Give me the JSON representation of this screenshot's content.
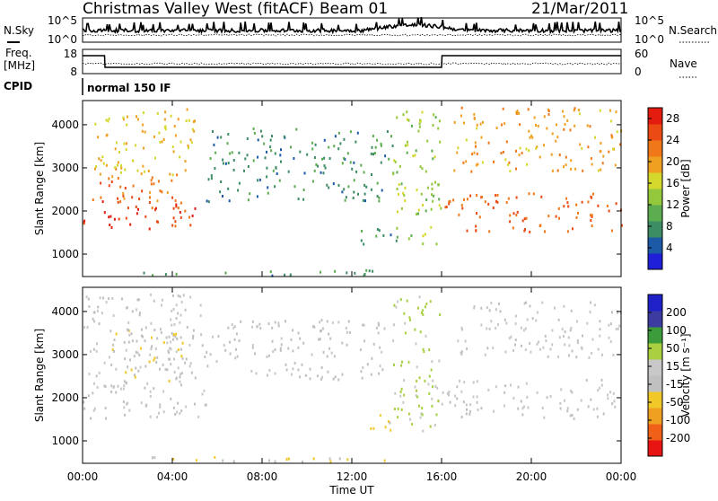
{
  "header": {
    "station": "Christmas Valley West (fitACF)",
    "beam": "Beam 01",
    "date": "21/Mar/2011"
  },
  "strip_labels": {
    "nsky": "N.Sky",
    "nsearch": "N.Search",
    "freq_line1": "Freq.",
    "freq_line2": "[MHz]",
    "nave": "Nave",
    "cpid": "CPID",
    "cpid_value": "normal 150 IF",
    "noise_ticks": [
      "10^5",
      "10^0"
    ],
    "freq_ticks": [
      "18",
      "8"
    ],
    "nave_ticks": [
      "60",
      "0"
    ]
  },
  "x_axis": {
    "label": "Time UT",
    "ticks": [
      "00:00",
      "04:00",
      "08:00",
      "12:00",
      "16:00",
      "20:00",
      "00:00"
    ]
  },
  "colors": {
    "power": [
      "#1f1fd8",
      "#1c5aa8",
      "#3c8c64",
      "#5cac50",
      "#94c83c",
      "#d4d82c",
      "#f0a020",
      "#f07818",
      "#ec4a14",
      "#e41c10"
    ],
    "velocity": [
      "#e81414",
      "#f06018",
      "#f0a020",
      "#f0c828",
      "#c0c0c0",
      "#c8c8c8",
      "#a8d040",
      "#3c9c3c",
      "#3c3ca0",
      "#2020c8"
    ]
  },
  "chart_data": [
    {
      "type": "heatmap",
      "title": "Power",
      "xlabel": "Time UT",
      "ylabel": "Slant Range [km]",
      "y_ticks": [
        "1000",
        "2000",
        "3000",
        "4000"
      ],
      "ylim": [
        480,
        4560
      ],
      "xlim_hours": [
        0,
        24
      ],
      "colorbar_label": "Power [dB]",
      "colorbar_ticks": [
        "4",
        "8",
        "12",
        "16",
        "20",
        "24",
        "28"
      ],
      "colorbar_range": [
        0,
        30
      ],
      "features": [
        {
          "desc": "lower red band",
          "t_start_h": 0.0,
          "t_end_h": 5.0,
          "range_start_km": 1500,
          "range_end_km": 2300,
          "value_db": 26
        },
        {
          "desc": "middle red/orange band",
          "t_start_h": 0.3,
          "t_end_h": 4.2,
          "range_start_km": 2200,
          "range_end_km": 3000,
          "value_db": 22
        },
        {
          "desc": "upper orange band",
          "t_start_h": 0.5,
          "t_end_h": 5.0,
          "range_start_km": 2800,
          "range_end_km": 4400,
          "value_db": 18
        },
        {
          "desc": "blue/green arc",
          "t_start_h": 5.5,
          "t_end_h": 13.8,
          "range_start_km": 2200,
          "range_end_km": 3900,
          "value_db": 8
        },
        {
          "desc": "blue patch near 1400 km",
          "t_start_h": 12.3,
          "t_end_h": 14.0,
          "range_start_km": 1200,
          "range_end_km": 1700,
          "value_db": 8
        },
        {
          "desc": "rising blue/orange echoes",
          "t_start_h": 13.8,
          "t_end_h": 16.0,
          "range_start_km": 1200,
          "range_end_km": 4400,
          "value_db": 14
        },
        {
          "desc": "orange/red bands after 16 UT",
          "t_start_h": 16.0,
          "t_end_h": 24.0,
          "range_start_km": 1500,
          "range_end_km": 2400,
          "value_db": 24
        },
        {
          "desc": "upper orange band after 16 UT",
          "t_start_h": 16.5,
          "t_end_h": 24.0,
          "range_start_km": 2900,
          "range_end_km": 4400,
          "value_db": 20
        },
        {
          "desc": "near-range ground echoes",
          "t_start_h": 2.5,
          "t_end_h": 14.0,
          "range_start_km": 480,
          "range_end_km": 620,
          "value_db": 8
        }
      ]
    },
    {
      "type": "heatmap",
      "title": "Velocity",
      "xlabel": "Time UT",
      "ylabel": "Slant Range [km]",
      "y_ticks": [
        "1000",
        "2000",
        "3000",
        "4000"
      ],
      "ylim": [
        480,
        4560
      ],
      "xlim_hours": [
        0,
        24
      ],
      "colorbar_label": "Velocity [m s⁻¹]",
      "colorbar_ticks": [
        "200",
        "100",
        "50",
        "15",
        "-15",
        "-50",
        "-100",
        "-200"
      ],
      "colorbar_range": [
        -250,
        250
      ],
      "features": [
        {
          "desc": "grey low-velocity bands",
          "t_start_h": 0.0,
          "t_end_h": 5.5,
          "range_start_km": 1500,
          "range_end_km": 4400,
          "value_ms": 0
        },
        {
          "desc": "orange negative velocities",
          "t_start_h": 1.0,
          "t_end_h": 4.5,
          "range_start_km": 2200,
          "range_end_km": 3600,
          "value_ms": -40
        },
        {
          "desc": "grey/orange arc",
          "t_start_h": 5.5,
          "t_end_h": 13.5,
          "range_start_km": 2400,
          "range_end_km": 3800,
          "value_ms": -10
        },
        {
          "desc": "orange patch near 1400 km",
          "t_start_h": 12.3,
          "t_end_h": 14.0,
          "range_start_km": 1200,
          "range_end_km": 1600,
          "value_ms": -60
        },
        {
          "desc": "green positive velocities",
          "t_start_h": 13.8,
          "t_end_h": 16.0,
          "range_start_km": 1200,
          "range_end_km": 4400,
          "value_ms": 60
        },
        {
          "desc": "grey bands after 16 UT",
          "t_start_h": 16.0,
          "t_end_h": 24.0,
          "range_start_km": 1500,
          "range_end_km": 2400,
          "value_ms": 0
        },
        {
          "desc": "upper grey/green band after 16 UT",
          "t_start_h": 16.5,
          "t_end_h": 24.0,
          "range_start_km": 2900,
          "range_end_km": 4200,
          "value_ms": 10
        },
        {
          "desc": "near-range orange echoes",
          "t_start_h": 2.5,
          "t_end_h": 14.0,
          "range_start_km": 480,
          "range_end_km": 620,
          "value_ms": -40
        }
      ]
    }
  ]
}
